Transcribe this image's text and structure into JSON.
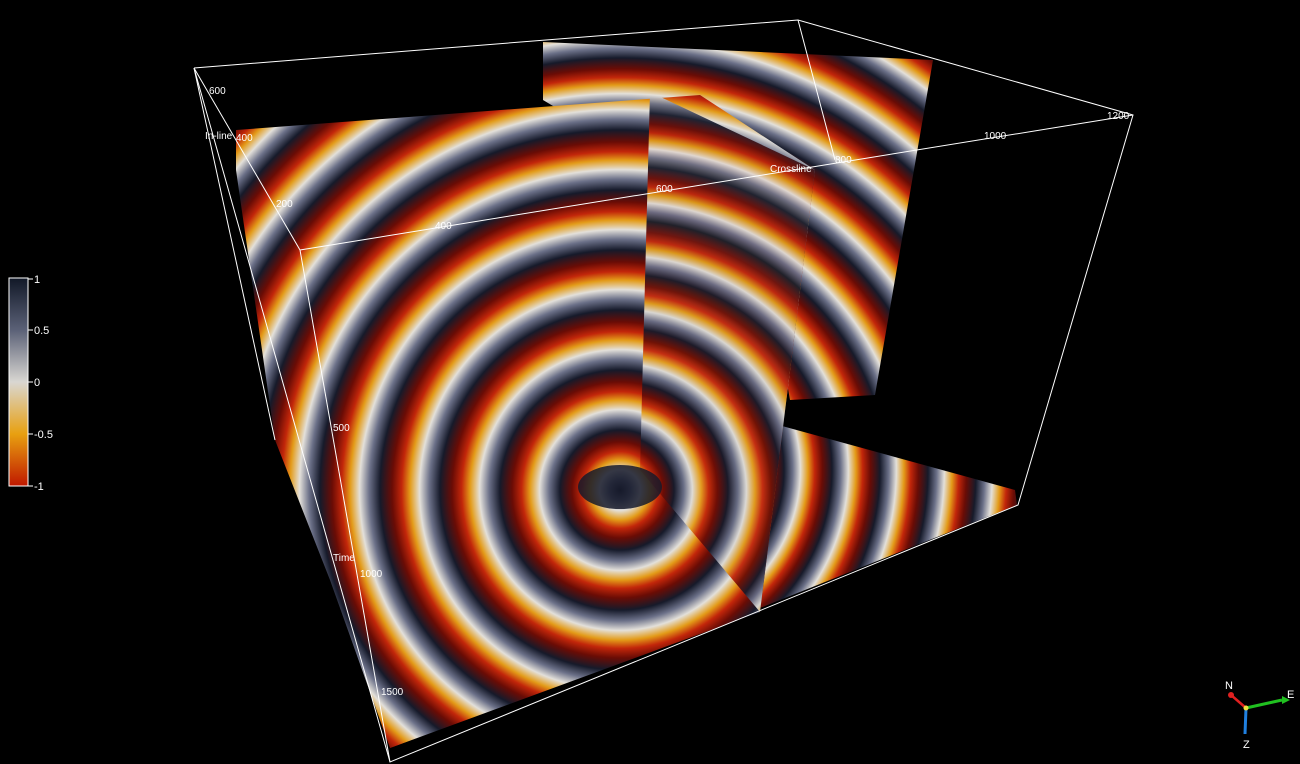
{
  "scene": {
    "background": "#000000",
    "box_color": "#ffffff",
    "axes": {
      "inline": {
        "title": "In-line",
        "ticks": [
          "200",
          "400",
          "600"
        ]
      },
      "crossline": {
        "title": "Crossline",
        "ticks": [
          "400",
          "600",
          "800",
          "1000",
          "1200"
        ]
      },
      "time": {
        "title": "Time",
        "ticks": [
          "500",
          "1000",
          "1500"
        ]
      }
    }
  },
  "colorbar": {
    "ticks": [
      "1",
      "0.5",
      "0",
      "-0.5",
      "-1"
    ],
    "colors": [
      "#111827",
      "#5b6177",
      "#d9d7d2",
      "#e8a010",
      "#c01800"
    ]
  },
  "compass": {
    "north": "N",
    "east": "E",
    "down": "Z",
    "colors": {
      "north": "#e02020",
      "east": "#20c020",
      "down": "#2080e0"
    }
  }
}
